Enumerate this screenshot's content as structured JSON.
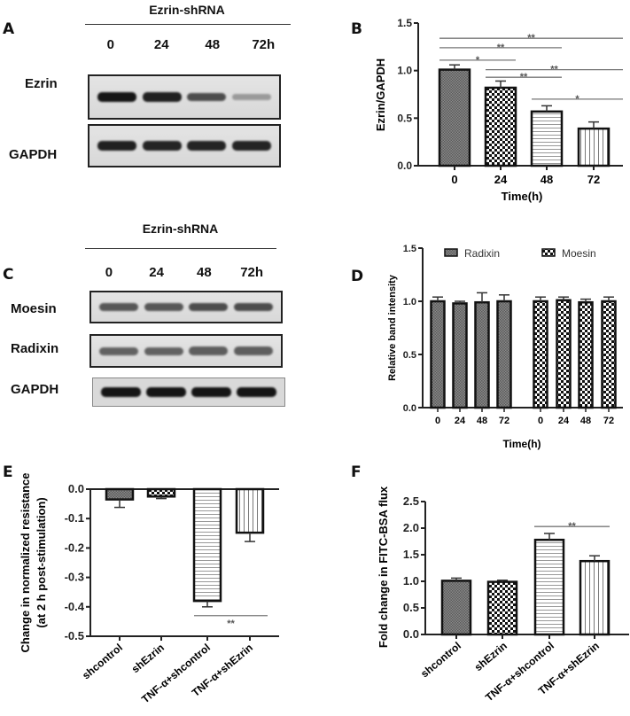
{
  "colors": {
    "bar_border": "#111111",
    "sig_line": "#777777",
    "axis": "#222222"
  },
  "panels": {
    "A": {
      "letter": "A",
      "title": "Ezrin-shRNA",
      "lanes": [
        "0",
        "24",
        "48",
        "72h"
      ],
      "rows": [
        {
          "label": "Ezrin",
          "band_intensity": [
            0.95,
            0.9,
            0.7,
            0.35
          ]
        },
        {
          "label": "GAPDH",
          "band_intensity": [
            0.9,
            0.88,
            0.88,
            0.88
          ]
        }
      ]
    },
    "C": {
      "letter": "C",
      "title": "Ezrin-shRNA",
      "lanes": [
        "0",
        "24",
        "48",
        "72h"
      ],
      "rows": [
        {
          "label": "Moesin",
          "band_intensity": [
            0.65,
            0.65,
            0.7,
            0.7
          ]
        },
        {
          "label": "Radixin",
          "band_intensity": [
            0.6,
            0.6,
            0.62,
            0.62
          ]
        },
        {
          "label": "GAPDH",
          "band_intensity": [
            0.95,
            0.95,
            0.95,
            0.95
          ]
        }
      ]
    }
  },
  "chart_data": [
    {
      "panel": "B",
      "type": "bar",
      "title": "",
      "xlabel": "Time(h)",
      "ylabel": "Ezrin/GAPDH",
      "categories": [
        "0",
        "24",
        "48",
        "72"
      ],
      "values": [
        1.01,
        0.82,
        0.57,
        0.39
      ],
      "errors": [
        0.05,
        0.07,
        0.06,
        0.07
      ],
      "patterns": [
        "dense",
        "checker",
        "hlines",
        "vlines"
      ],
      "ylim": [
        0,
        1.5
      ],
      "yticks": [
        "0.0",
        "0.5",
        "1.0",
        "1.5"
      ],
      "grid": false,
      "significance": [
        {
          "from": 0,
          "to": 3,
          "y": 1.34,
          "label": "**"
        },
        {
          "from": 0,
          "to": 2,
          "y": 1.24,
          "label": "**"
        },
        {
          "from": 0,
          "to": 1,
          "y": 1.11,
          "label": "*"
        },
        {
          "from": 1,
          "to": 3,
          "y": 1.01,
          "label": "**"
        },
        {
          "from": 1,
          "to": 2,
          "y": 0.93,
          "label": "**"
        },
        {
          "from": 2,
          "to": 3,
          "y": 0.7,
          "label": "*"
        }
      ]
    },
    {
      "panel": "D",
      "type": "bar",
      "title": "",
      "xlabel": "Time(h)",
      "ylabel": "Relative band intensity",
      "categories": [
        "0",
        "24",
        "48",
        "72",
        "0",
        "24",
        "48",
        "72"
      ],
      "series": [
        {
          "name": "Radixin",
          "values": [
            1.0,
            0.98,
            0.99,
            1.0
          ],
          "errors": [
            0.04,
            0.02,
            0.09,
            0.06
          ],
          "pattern": "dense"
        },
        {
          "name": "Moesin",
          "values": [
            1.0,
            1.01,
            0.99,
            1.0
          ],
          "errors": [
            0.04,
            0.03,
            0.03,
            0.04
          ],
          "pattern": "checker"
        }
      ],
      "ylim": [
        0,
        1.5
      ],
      "yticks": [
        "0.0",
        "0.5",
        "1.0",
        "1.5"
      ],
      "legend_position": "top",
      "grid": false
    },
    {
      "panel": "E",
      "type": "bar",
      "title": "",
      "xlabel": "",
      "ylabel": "Change in normalized resistance (at 2 h post-stimulation)",
      "ylabel_lines": [
        "Change in normalized resistance",
        "(at 2 h post-stimulation)"
      ],
      "categories": [
        "shcontrol",
        "shEzrin",
        "TNF-α+shcontrol",
        "TNF-α+shEzrin"
      ],
      "values": [
        -0.035,
        -0.025,
        -0.38,
        -0.148
      ],
      "errors": [
        0.027,
        0.007,
        0.02,
        0.03
      ],
      "patterns": [
        "dense",
        "checker",
        "hlines",
        "vlines"
      ],
      "ylim": [
        -0.5,
        0.0
      ],
      "yticks": [
        "0.0",
        "-0.1",
        "-0.2",
        "-0.3",
        "-0.4",
        "-0.5"
      ],
      "grid": false,
      "significance": [
        {
          "from": 2,
          "to": 3,
          "y": -0.43,
          "label": "**",
          "label_below": true
        }
      ]
    },
    {
      "panel": "F",
      "type": "bar",
      "title": "",
      "xlabel": "",
      "ylabel": "Fold change in FITC-BSA flux",
      "categories": [
        "shcontrol",
        "shEzrin",
        "TNF-α+shcontrol",
        "TNF-α+shEzrin"
      ],
      "values": [
        1.01,
        0.99,
        1.78,
        1.38
      ],
      "errors": [
        0.05,
        0.03,
        0.12,
        0.1
      ],
      "patterns": [
        "dense",
        "checker",
        "hlines",
        "vlines"
      ],
      "ylim": [
        0,
        2.5
      ],
      "yticks": [
        "0.0",
        "0.5",
        "1.0",
        "1.5",
        "2.0",
        "2.5"
      ],
      "grid": false,
      "significance": [
        {
          "from": 2,
          "to": 3,
          "y": 2.03,
          "label": "**"
        }
      ]
    }
  ]
}
